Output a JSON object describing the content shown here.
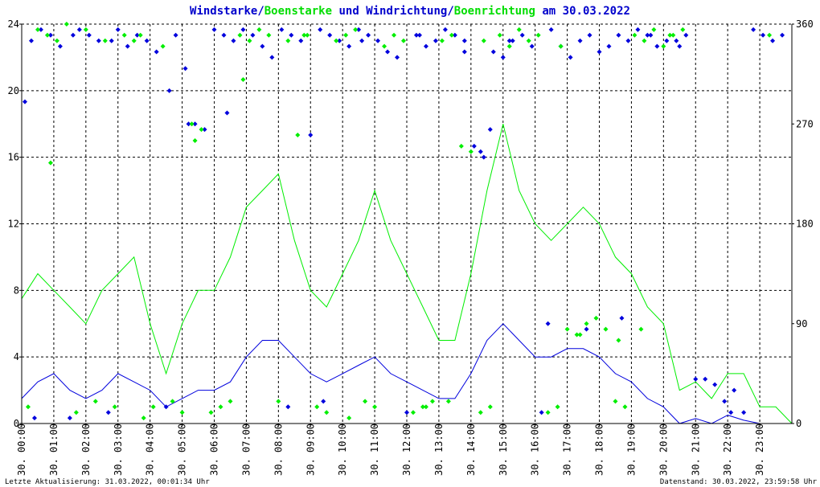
{
  "chart_data": {
    "type": "line",
    "title_parts": [
      {
        "text": "Windstarke",
        "color": "#0000cc"
      },
      {
        "text": "/",
        "color": "#0000cc"
      },
      {
        "text": "Boenstarke",
        "color": "#00dd00"
      },
      {
        "text": " und ",
        "color": "#0000cc"
      },
      {
        "text": "Windrichtung",
        "color": "#0000cc"
      },
      {
        "text": "/",
        "color": "#0000cc"
      },
      {
        "text": "Boenrichtung",
        "color": "#00dd00"
      },
      {
        "text": " am 30.03.2022",
        "color": "#0000cc"
      }
    ],
    "y_left": {
      "min": 0,
      "max": 24,
      "ticks": [
        0,
        4,
        8,
        12,
        16,
        20,
        24
      ]
    },
    "y_right": {
      "min": 0,
      "max": 360,
      "ticks": [
        0,
        90,
        180,
        270,
        360
      ]
    },
    "x": {
      "min": 0,
      "max": 24,
      "tick_labels": [
        "30. 00:00",
        "30. 01:00",
        "30. 02:00",
        "30. 03:00",
        "30. 04:00",
        "30. 05:00",
        "30. 06:00",
        "30. 07:00",
        "30. 08:00",
        "30. 09:00",
        "30. 10:00",
        "30. 11:00",
        "30. 12:00",
        "30. 13:00",
        "30. 14:00",
        "30. 15:00",
        "30. 16:00",
        "30. 17:00",
        "30. 18:00",
        "30. 19:00",
        "30. 20:00",
        "30. 21:00",
        "30. 22:00",
        "30. 23:00"
      ]
    },
    "grid": true,
    "colors": {
      "wind": "#0000dd",
      "gust": "#00ee00",
      "axis": "#000000",
      "grid": "#000000"
    },
    "series": [
      {
        "name": "Windstarke",
        "axis": "left",
        "style": "line",
        "color": "#0000dd",
        "x": [
          0,
          0.5,
          1,
          1.5,
          2,
          2.5,
          3,
          3.5,
          4,
          4.5,
          5,
          5.5,
          6,
          6.5,
          7,
          7.5,
          8,
          8.5,
          9,
          9.5,
          10,
          10.5,
          11,
          11.5,
          12,
          12.5,
          13,
          13.5,
          14,
          14.5,
          15,
          15.5,
          16,
          16.5,
          17,
          17.5,
          18,
          18.5,
          19,
          19.5,
          20,
          20.25,
          20.5,
          21,
          21.5,
          22,
          22.5,
          23,
          23.5,
          24
        ],
        "values": [
          1.5,
          2.5,
          3,
          2,
          1.5,
          2,
          3,
          2.5,
          2,
          1,
          1.5,
          2,
          2,
          2.5,
          4,
          5,
          5,
          4,
          3,
          2.5,
          3,
          3.5,
          4,
          3,
          2.5,
          2,
          1.5,
          1.5,
          3,
          5,
          6,
          5,
          4,
          4,
          4.5,
          4.5,
          4,
          3,
          2.5,
          1.5,
          1,
          0.5,
          0,
          0.3,
          0,
          0.5,
          0.2,
          0,
          0,
          0
        ]
      },
      {
        "name": "Boenstarke",
        "axis": "left",
        "style": "line",
        "color": "#00ee00",
        "x": [
          0,
          0.5,
          1,
          1.5,
          2,
          2.5,
          3,
          3.5,
          4,
          4.5,
          5,
          5.5,
          6,
          6.5,
          7,
          7.5,
          8,
          8.5,
          9,
          9.5,
          10,
          10.5,
          11,
          11.5,
          12,
          12.5,
          13,
          13.5,
          14,
          14.5,
          15,
          15.5,
          16,
          16.5,
          17,
          17.5,
          18,
          18.5,
          19,
          19.5,
          20,
          20.25,
          20.5,
          21,
          21.5,
          22,
          22.5,
          23,
          23.5,
          24
        ],
        "values": [
          7.5,
          9,
          8,
          7,
          6,
          8,
          9,
          10,
          6,
          3,
          6,
          8,
          8,
          10,
          13,
          14,
          15,
          11,
          8,
          7,
          9,
          11,
          14,
          11,
          9,
          7,
          5,
          5,
          9,
          14,
          18,
          14,
          12,
          11,
          12,
          13,
          12,
          10,
          9,
          7,
          6,
          4,
          2,
          2.5,
          1.5,
          3,
          3,
          1,
          1,
          0
        ]
      },
      {
        "name": "Windrichtung",
        "axis": "right",
        "style": "points",
        "color": "#0000dd",
        "x": [
          0.1,
          0.3,
          0.6,
          0.9,
          1.2,
          1.5,
          1.8,
          2.1,
          2.4,
          2.7,
          3.0,
          3.3,
          3.6,
          3.9,
          4.2,
          4.5,
          4.8,
          5.1,
          5.4,
          5.7,
          6.0,
          6.3,
          6.6,
          6.9,
          7.2,
          7.5,
          7.8,
          8.1,
          8.4,
          8.7,
          9.0,
          9.3,
          9.6,
          9.9,
          10.2,
          10.5,
          10.8,
          11.1,
          11.4,
          11.7,
          12.0,
          12.3,
          12.6,
          12.9,
          13.2,
          13.5,
          13.8,
          14.1,
          14.4,
          14.7,
          15.0,
          15.3,
          15.6,
          15.9,
          16.2,
          16.5,
          16.8,
          17.1,
          17.4,
          17.7,
          18.0,
          18.3,
          18.6,
          18.9,
          19.2,
          19.5,
          19.8,
          20.1,
          20.4,
          20.7,
          21.0,
          21.3,
          21.6,
          21.9,
          22.2,
          22.5,
          22.8,
          23.1,
          23.4,
          23.7,
          0.4,
          1.6,
          2.8,
          4.6,
          5.2,
          6.4,
          8.3,
          9.4,
          10.6,
          12.4,
          13.8,
          14.3,
          14.6,
          15.2,
          16.4,
          17.6,
          18.7,
          19.6,
          20.5,
          22.1
        ],
        "values": [
          290,
          345,
          355,
          350,
          340,
          5,
          355,
          350,
          345,
          10,
          355,
          340,
          350,
          345,
          335,
          15,
          350,
          320,
          270,
          265,
          355,
          350,
          345,
          355,
          350,
          340,
          330,
          355,
          350,
          345,
          260,
          355,
          350,
          345,
          340,
          355,
          350,
          345,
          335,
          330,
          10,
          350,
          340,
          345,
          355,
          350,
          345,
          250,
          240,
          335,
          330,
          345,
          350,
          340,
          10,
          355,
          340,
          330,
          345,
          350,
          335,
          340,
          350,
          345,
          355,
          350,
          340,
          345,
          345,
          350,
          40,
          40,
          35,
          20,
          30,
          10,
          355,
          350,
          345,
          350,
          5,
          350,
          345,
          300,
          270,
          280,
          15,
          20,
          345,
          350,
          335,
          245,
          265,
          345,
          90,
          85,
          95,
          350,
          340,
          10
        ]
      },
      {
        "name": "Boenrichtung",
        "axis": "right",
        "style": "points",
        "color": "#00ee00",
        "x": [
          0.2,
          0.5,
          0.8,
          1.1,
          1.4,
          1.7,
          2.0,
          2.3,
          2.6,
          2.9,
          3.2,
          3.5,
          3.8,
          4.1,
          4.4,
          4.7,
          5.0,
          5.3,
          5.6,
          5.9,
          6.2,
          6.5,
          6.8,
          7.1,
          7.4,
          7.7,
          8.0,
          8.3,
          8.6,
          8.9,
          9.2,
          9.5,
          9.8,
          10.1,
          10.4,
          10.7,
          11.0,
          11.3,
          11.6,
          11.9,
          12.2,
          12.5,
          12.8,
          13.1,
          13.4,
          13.7,
          14.0,
          14.3,
          14.6,
          14.9,
          15.2,
          15.5,
          15.8,
          16.1,
          16.4,
          16.7,
          17.0,
          17.3,
          17.6,
          17.9,
          18.2,
          18.5,
          18.8,
          19.1,
          19.4,
          19.7,
          20.0,
          20.3,
          20.6,
          23.3,
          0.9,
          3.7,
          5.4,
          6.9,
          8.8,
          10.2,
          12.6,
          13.3,
          14.4,
          16.8,
          17.4,
          18.6,
          19.3,
          20.2
        ],
        "values": [
          15,
          355,
          350,
          345,
          360,
          10,
          355,
          20,
          345,
          15,
          350,
          345,
          5,
          15,
          340,
          20,
          10,
          270,
          265,
          10,
          15,
          20,
          350,
          345,
          355,
          350,
          20,
          345,
          260,
          350,
          15,
          10,
          345,
          350,
          355,
          20,
          15,
          340,
          350,
          345,
          10,
          15,
          20,
          345,
          350,
          250,
          245,
          10,
          15,
          350,
          340,
          355,
          345,
          350,
          10,
          15,
          85,
          80,
          90,
          95,
          85,
          20,
          15,
          350,
          345,
          355,
          340,
          350,
          355,
          350,
          235,
          350,
          255,
          310,
          350,
          5,
          15,
          20,
          345,
          340,
          80,
          75,
          85,
          350
        ]
      }
    ]
  },
  "footer": {
    "left": "Letzte Aktualisierung: 31.03.2022, 00:01:34 Uhr",
    "right": "Datenstand: 30.03.2022, 23:59:58 Uhr"
  }
}
